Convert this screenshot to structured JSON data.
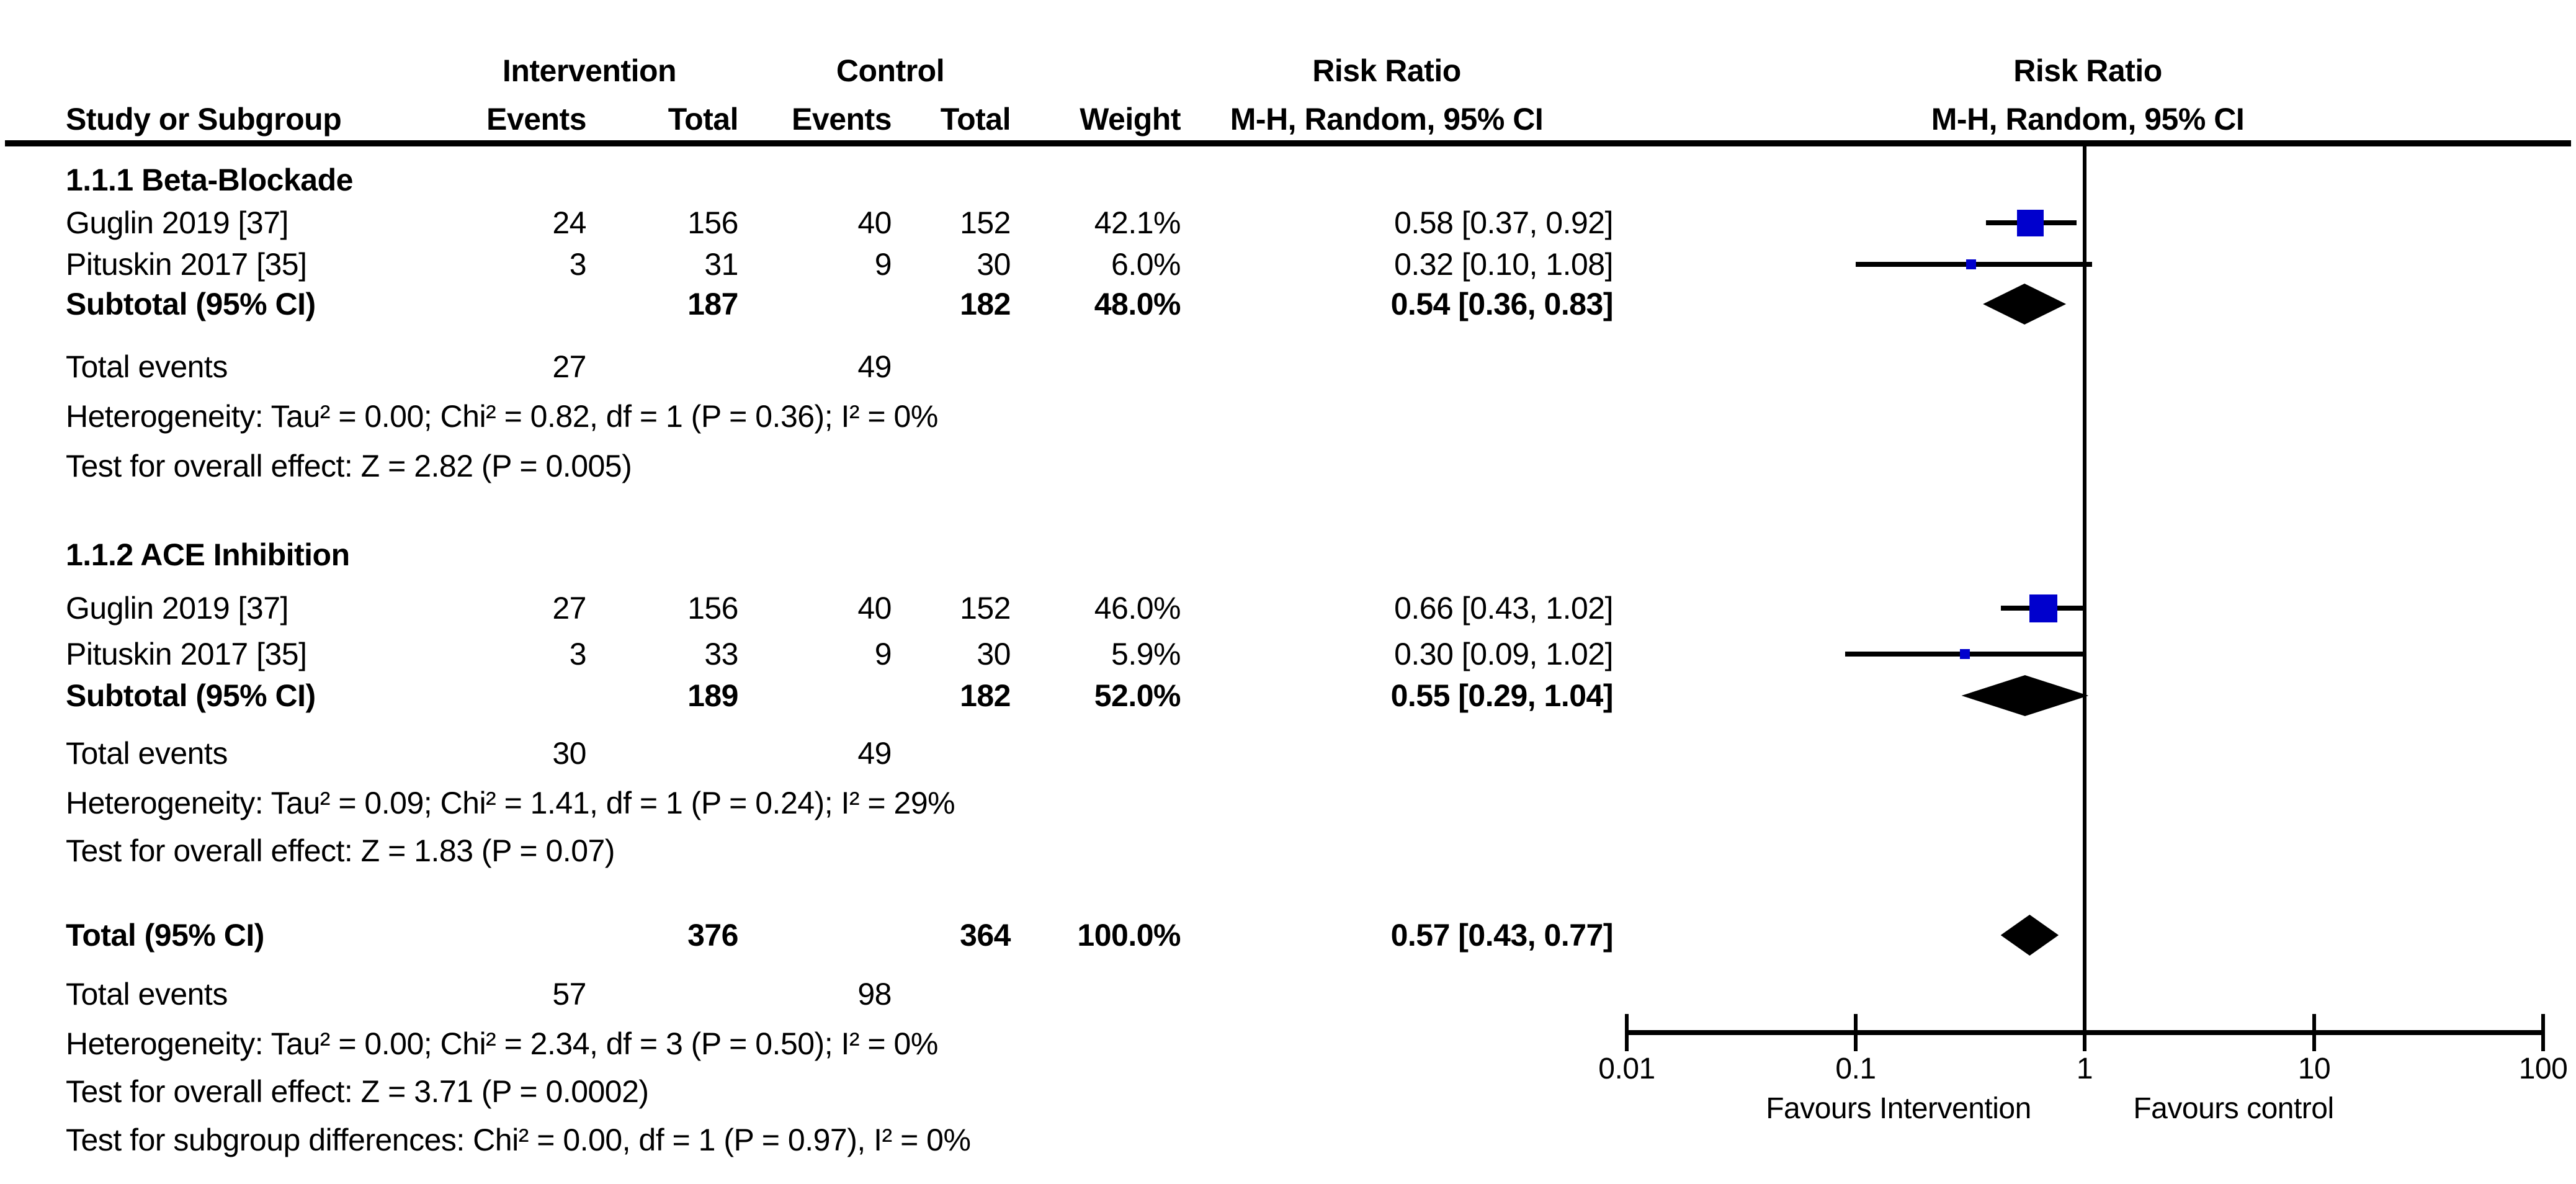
{
  "header": {
    "group1": "Intervention",
    "group2": "Control",
    "rr_text_title": "Risk Ratio",
    "rr_text_sub": "M-H, Random, 95% CI",
    "rr_plot_title": "Risk Ratio",
    "rr_plot_sub": "M-H, Random, 95% CI",
    "study": "Study or Subgroup",
    "events": "Events",
    "total": "Total",
    "weight": "Weight"
  },
  "rows": {
    "g1_head": "1.1.1 Beta-Blockade",
    "g1_s1": {
      "label": "Guglin 2019 [37]",
      "e1": "24",
      "t1": "156",
      "e2": "40",
      "t2": "152",
      "w": "42.1%",
      "rr": "0.58 [0.37, 0.92]"
    },
    "g1_s2": {
      "label": "Pituskin 2017 [35]",
      "e1": "3",
      "t1": "31",
      "e2": "9",
      "t2": "30",
      "w": "6.0%",
      "rr": "0.32 [0.10, 1.08]"
    },
    "g1_sub": {
      "label": "Subtotal (95% CI)",
      "t1": "187",
      "t2": "182",
      "w": "48.0%",
      "rr": "0.54 [0.36, 0.83]"
    },
    "g1_te": {
      "label": "Total events",
      "e1": "27",
      "e2": "49"
    },
    "g1_het": "Heterogeneity: Tau² = 0.00; Chi² = 0.82, df = 1 (P = 0.36); I² = 0%",
    "g1_test": "Test for overall effect: Z = 2.82 (P = 0.005)",
    "g2_head": "1.1.2 ACE Inhibition",
    "g2_s1": {
      "label": "Guglin 2019 [37]",
      "e1": "27",
      "t1": "156",
      "e2": "40",
      "t2": "152",
      "w": "46.0%",
      "rr": "0.66 [0.43, 1.02]"
    },
    "g2_s2": {
      "label": "Pituskin 2017 [35]",
      "e1": "3",
      "t1": "33",
      "e2": "9",
      "t2": "30",
      "w": "5.9%",
      "rr": "0.30 [0.09, 1.02]"
    },
    "g2_sub": {
      "label": "Subtotal (95% CI)",
      "t1": "189",
      "t2": "182",
      "w": "52.0%",
      "rr": "0.55 [0.29, 1.04]"
    },
    "g2_te": {
      "label": "Total events",
      "e1": "30",
      "e2": "49"
    },
    "g2_het": "Heterogeneity: Tau² = 0.09; Chi² = 1.41, df = 1 (P = 0.24); I² = 29%",
    "g2_test": "Test for overall effect: Z = 1.83 (P = 0.07)",
    "tot": {
      "label": "Total (95% CI)",
      "t1": "376",
      "t2": "364",
      "w": "100.0%",
      "rr": "0.57 [0.43, 0.77]"
    },
    "tot_te": {
      "label": "Total events",
      "e1": "57",
      "e2": "98"
    },
    "tot_het": "Heterogeneity: Tau² = 0.00; Chi² = 2.34, df = 3 (P = 0.50); I² = 0%",
    "tot_test": "Test for overall effect: Z = 3.71 (P = 0.0002)",
    "subdiff": "Test for subgroup differences: Chi² = 0.00, df = 1 (P = 0.97), I² = 0%"
  },
  "axis": {
    "ticks": [
      "0.01",
      "0.1",
      "1",
      "10",
      "100"
    ],
    "favours_left": "Favours Intervention",
    "favours_right": "Favours control"
  },
  "colors": {
    "square": "#0000CD",
    "diamond": "#000000",
    "line": "#000000"
  },
  "chart_data": {
    "type": "forest",
    "effect_measure": "Risk Ratio",
    "method": "M-H, Random, 95% CI",
    "x_scale": "log",
    "x_ticks": [
      0.01,
      0.1,
      1,
      10,
      100
    ],
    "ref_line": 1,
    "xlabel_left": "Favours Intervention",
    "xlabel_right": "Favours control",
    "groups": [
      {
        "name": "1.1.1 Beta-Blockade",
        "studies": [
          {
            "label": "Guglin 2019 [37]",
            "events_intervention": 24,
            "total_intervention": 156,
            "events_control": 40,
            "total_control": 152,
            "weight_pct": 42.1,
            "rr": 0.58,
            "ci_low": 0.37,
            "ci_high": 0.92
          },
          {
            "label": "Pituskin 2017 [35]",
            "events_intervention": 3,
            "total_intervention": 31,
            "events_control": 9,
            "total_control": 30,
            "weight_pct": 6.0,
            "rr": 0.32,
            "ci_low": 0.1,
            "ci_high": 1.08
          }
        ],
        "subtotal": {
          "total_intervention": 187,
          "total_control": 182,
          "weight_pct": 48.0,
          "rr": 0.54,
          "ci_low": 0.36,
          "ci_high": 0.83,
          "total_events_intervention": 27,
          "total_events_control": 49,
          "heterogeneity": "Tau² = 0.00; Chi² = 0.82, df = 1 (P = 0.36); I² = 0%",
          "overall_effect": "Z = 2.82 (P = 0.005)"
        }
      },
      {
        "name": "1.1.2 ACE Inhibition",
        "studies": [
          {
            "label": "Guglin 2019 [37]",
            "events_intervention": 27,
            "total_intervention": 156,
            "events_control": 40,
            "total_control": 152,
            "weight_pct": 46.0,
            "rr": 0.66,
            "ci_low": 0.43,
            "ci_high": 1.02
          },
          {
            "label": "Pituskin 2017 [35]",
            "events_intervention": 3,
            "total_intervention": 33,
            "events_control": 9,
            "total_control": 30,
            "weight_pct": 5.9,
            "rr": 0.3,
            "ci_low": 0.09,
            "ci_high": 1.02
          }
        ],
        "subtotal": {
          "total_intervention": 189,
          "total_control": 182,
          "weight_pct": 52.0,
          "rr": 0.55,
          "ci_low": 0.29,
          "ci_high": 1.04,
          "total_events_intervention": 30,
          "total_events_control": 49,
          "heterogeneity": "Tau² = 0.09; Chi² = 1.41, df = 1 (P = 0.24); I² = 29%",
          "overall_effect": "Z = 1.83 (P = 0.07)"
        }
      }
    ],
    "total": {
      "total_intervention": 376,
      "total_control": 364,
      "weight_pct": 100.0,
      "rr": 0.57,
      "ci_low": 0.43,
      "ci_high": 0.77,
      "total_events_intervention": 57,
      "total_events_control": 98,
      "heterogeneity": "Tau² = 0.00; Chi² = 2.34, df = 3 (P = 0.50); I² = 0%",
      "overall_effect": "Z = 3.71 (P = 0.0002)",
      "subgroup_differences": "Chi² = 0.00, df = 1 (P = 0.97), I² = 0%"
    }
  }
}
